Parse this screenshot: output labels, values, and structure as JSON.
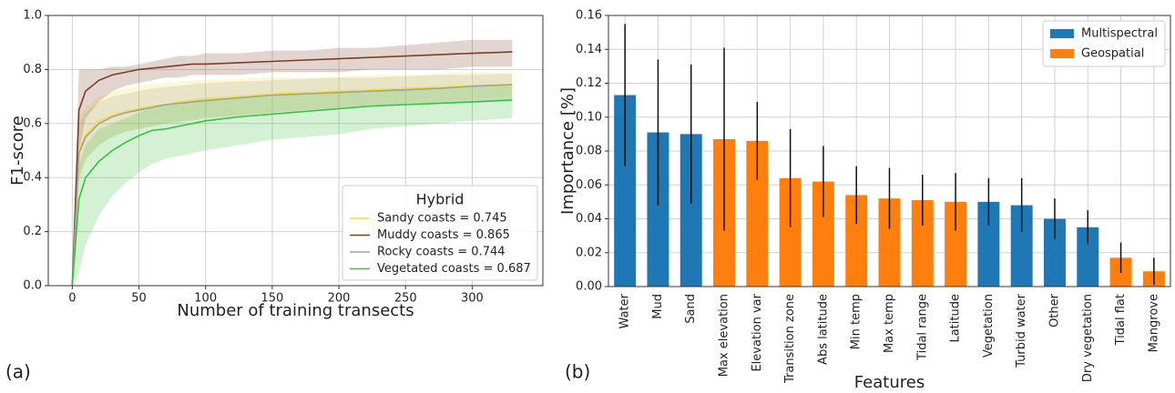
{
  "chart_data": [
    {
      "type": "line",
      "panel_label": "(a)",
      "xlabel": "Number of training transects",
      "ylabel": "F1-score",
      "xlim": [
        -18,
        353
      ],
      "xticks": [
        0,
        50,
        100,
        150,
        200,
        250,
        300
      ],
      "ylim": [
        0,
        1
      ],
      "yticks": [
        {
          "value": 0,
          "label": "0.0"
        },
        0.2,
        0.4,
        0.6,
        0.8,
        {
          "value": 1,
          "label": "1.0"
        }
      ],
      "grid": true,
      "legend_title": "Hybrid",
      "legend": "lower right",
      "x": [
        0,
        5,
        10,
        20,
        30,
        40,
        50,
        60,
        70,
        80,
        90,
        100,
        125,
        150,
        175,
        200,
        225,
        250,
        275,
        300,
        330
      ],
      "series": [
        {
          "name": "Sandy coasts = 0.745",
          "color": "#f2e13a",
          "values": [
            0,
            0.5,
            0.56,
            0.61,
            0.63,
            0.645,
            0.655,
            0.665,
            0.67,
            0.68,
            0.685,
            0.69,
            0.7,
            0.71,
            0.715,
            0.72,
            0.725,
            0.73,
            0.735,
            0.74,
            0.745
          ],
          "upper": [
            0,
            0.62,
            0.66,
            0.7,
            0.72,
            0.73,
            0.74,
            0.745,
            0.75,
            0.755,
            0.76,
            0.76,
            0.765,
            0.77,
            0.77,
            0.775,
            0.78,
            0.78,
            0.785,
            0.79,
            0.79
          ],
          "lower": [
            0,
            0.38,
            0.46,
            0.52,
            0.55,
            0.57,
            0.58,
            0.59,
            0.6,
            0.61,
            0.615,
            0.62,
            0.63,
            0.64,
            0.65,
            0.66,
            0.67,
            0.675,
            0.68,
            0.69,
            0.7
          ]
        },
        {
          "name": "Muddy coasts = 0.865",
          "color": "#7b3f26",
          "values": [
            0,
            0.65,
            0.72,
            0.76,
            0.78,
            0.79,
            0.8,
            0.805,
            0.81,
            0.815,
            0.82,
            0.82,
            0.825,
            0.83,
            0.835,
            0.84,
            0.845,
            0.85,
            0.855,
            0.86,
            0.865
          ],
          "upper": [
            0,
            0.8,
            0.8,
            0.8,
            0.81,
            0.81,
            0.82,
            0.83,
            0.84,
            0.85,
            0.85,
            0.86,
            0.86,
            0.87,
            0.87,
            0.88,
            0.88,
            0.89,
            0.9,
            0.91,
            0.91
          ],
          "lower": [
            0,
            0.5,
            0.62,
            0.68,
            0.72,
            0.74,
            0.75,
            0.76,
            0.77,
            0.77,
            0.78,
            0.78,
            0.78,
            0.79,
            0.79,
            0.79,
            0.8,
            0.8,
            0.8,
            0.81,
            0.81
          ]
        },
        {
          "name": "Rocky coasts = 0.744",
          "color": "#a0a0a0",
          "values": [
            0,
            0.49,
            0.55,
            0.6,
            0.625,
            0.64,
            0.65,
            0.66,
            0.67,
            0.675,
            0.68,
            0.685,
            0.695,
            0.705,
            0.71,
            0.715,
            0.72,
            0.725,
            0.73,
            0.738,
            0.744
          ],
          "upper": [
            0,
            0.6,
            0.64,
            0.68,
            0.7,
            0.71,
            0.72,
            0.73,
            0.735,
            0.74,
            0.745,
            0.75,
            0.755,
            0.76,
            0.765,
            0.77,
            0.77,
            0.775,
            0.78,
            0.78,
            0.785
          ],
          "lower": [
            0,
            0.4,
            0.47,
            0.52,
            0.55,
            0.57,
            0.58,
            0.59,
            0.6,
            0.605,
            0.61,
            0.62,
            0.63,
            0.64,
            0.65,
            0.66,
            0.665,
            0.67,
            0.675,
            0.68,
            0.69
          ]
        },
        {
          "name": "Vegetated coasts = 0.687",
          "color": "#3cc03c",
          "values": [
            0,
            0.32,
            0.4,
            0.46,
            0.5,
            0.53,
            0.555,
            0.575,
            0.58,
            0.59,
            0.6,
            0.61,
            0.625,
            0.635,
            0.645,
            0.655,
            0.665,
            0.67,
            0.675,
            0.68,
            0.687
          ],
          "upper": [
            0,
            0.45,
            0.52,
            0.58,
            0.6,
            0.62,
            0.64,
            0.66,
            0.67,
            0.68,
            0.69,
            0.695,
            0.7,
            0.705,
            0.71,
            0.715,
            0.72,
            0.725,
            0.73,
            0.735,
            0.74
          ],
          "lower": [
            0,
            0.05,
            0.15,
            0.26,
            0.33,
            0.38,
            0.42,
            0.45,
            0.47,
            0.48,
            0.49,
            0.5,
            0.52,
            0.54,
            0.55,
            0.56,
            0.58,
            0.59,
            0.6,
            0.61,
            0.62
          ]
        }
      ]
    },
    {
      "type": "bar",
      "panel_label": "(b)",
      "xlabel": "Features",
      "ylabel": "Importance [%]",
      "ylim": [
        0,
        0.16
      ],
      "yticks": [
        {
          "value": 0,
          "label": "0.00"
        },
        0.02,
        0.04,
        0.06,
        0.08,
        {
          "value": 0.1,
          "label": "0.10"
        },
        0.12,
        0.14,
        0.16
      ],
      "grid": true,
      "legend": "upper right",
      "categories": [
        "Water",
        "Mud",
        "Sand",
        "Max elevation",
        "Elevation var",
        "Transition zone",
        "Abs latitude",
        "Min temp",
        "Max temp",
        "Tidal range",
        "Latitude",
        "Vegetation",
        "Turbid water",
        "Other",
        "Dry vegetation",
        "Tidal flat",
        "Mangrove"
      ],
      "series": [
        {
          "name": "Multispectral",
          "color": "#1f77b4",
          "values": [
            0.113,
            0.091,
            0.09,
            null,
            null,
            null,
            null,
            null,
            null,
            null,
            null,
            0.05,
            0.048,
            0.04,
            0.035,
            null,
            null
          ],
          "errors": [
            0.042,
            0.043,
            0.041,
            null,
            null,
            null,
            null,
            null,
            null,
            null,
            null,
            0.014,
            0.016,
            0.012,
            0.01,
            null,
            null
          ]
        },
        {
          "name": "Geospatial",
          "color": "#ff7f0e",
          "values": [
            null,
            null,
            null,
            0.087,
            0.086,
            0.064,
            0.062,
            0.054,
            0.052,
            0.051,
            0.05,
            null,
            null,
            null,
            null,
            0.017,
            0.009
          ],
          "errors": [
            null,
            null,
            null,
            0.054,
            0.023,
            0.029,
            0.021,
            0.017,
            0.018,
            0.015,
            0.017,
            null,
            null,
            null,
            null,
            0.009,
            0.008
          ]
        }
      ]
    }
  ]
}
